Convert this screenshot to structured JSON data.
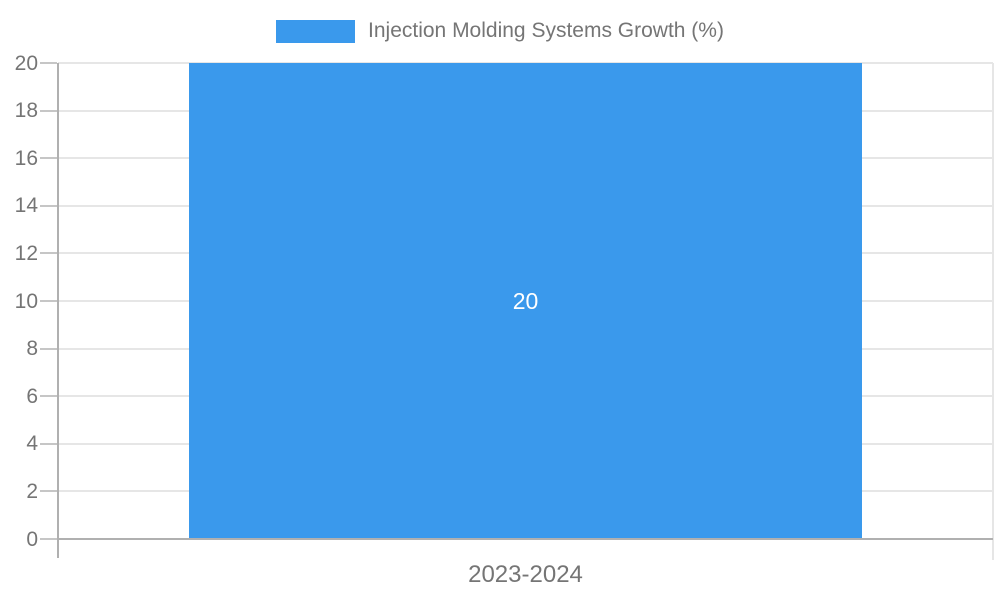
{
  "legend": {
    "label": "Injection Molding Systems Growth (%)",
    "position": "top"
  },
  "chart_data": {
    "type": "bar",
    "categories": [
      "2023-2024"
    ],
    "series": [
      {
        "name": "Injection Molding Systems Growth (%)",
        "color": "#3a99ec",
        "values": [
          20
        ]
      }
    ],
    "bar_labels": [
      "20"
    ],
    "title": "",
    "xlabel": "",
    "ylabel": "",
    "ylim": [
      0,
      20
    ],
    "yticks": [
      0,
      2,
      4,
      6,
      8,
      10,
      12,
      14,
      16,
      18,
      20
    ],
    "grid": true,
    "legend_position": "top"
  },
  "colors": {
    "bar": "#3a99ec",
    "text": "#757575",
    "grid": "#e6e6e6",
    "axis": "#b0b0b0",
    "tick": "#c6c6c6",
    "bar_label": "#ffffff",
    "background": "#ffffff"
  }
}
